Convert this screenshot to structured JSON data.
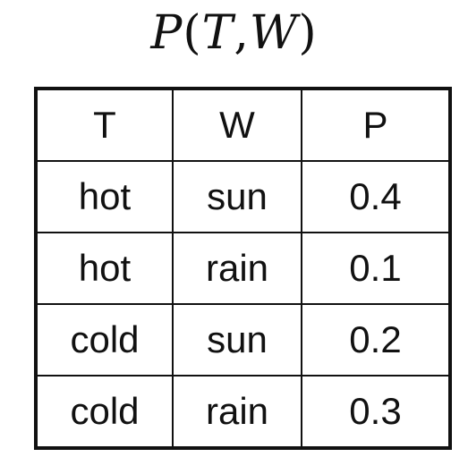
{
  "title": {
    "func": "P",
    "open": "(",
    "arg1": "T",
    "sep": ",",
    "arg2": "W",
    "close": ")"
  },
  "table": {
    "headers": [
      "T",
      "W",
      "P"
    ],
    "rows": [
      [
        "hot",
        "sun",
        "0.4"
      ],
      [
        "hot",
        "rain",
        "0.1"
      ],
      [
        "cold",
        "sun",
        "0.2"
      ],
      [
        "cold",
        "rain",
        "0.3"
      ]
    ]
  }
}
